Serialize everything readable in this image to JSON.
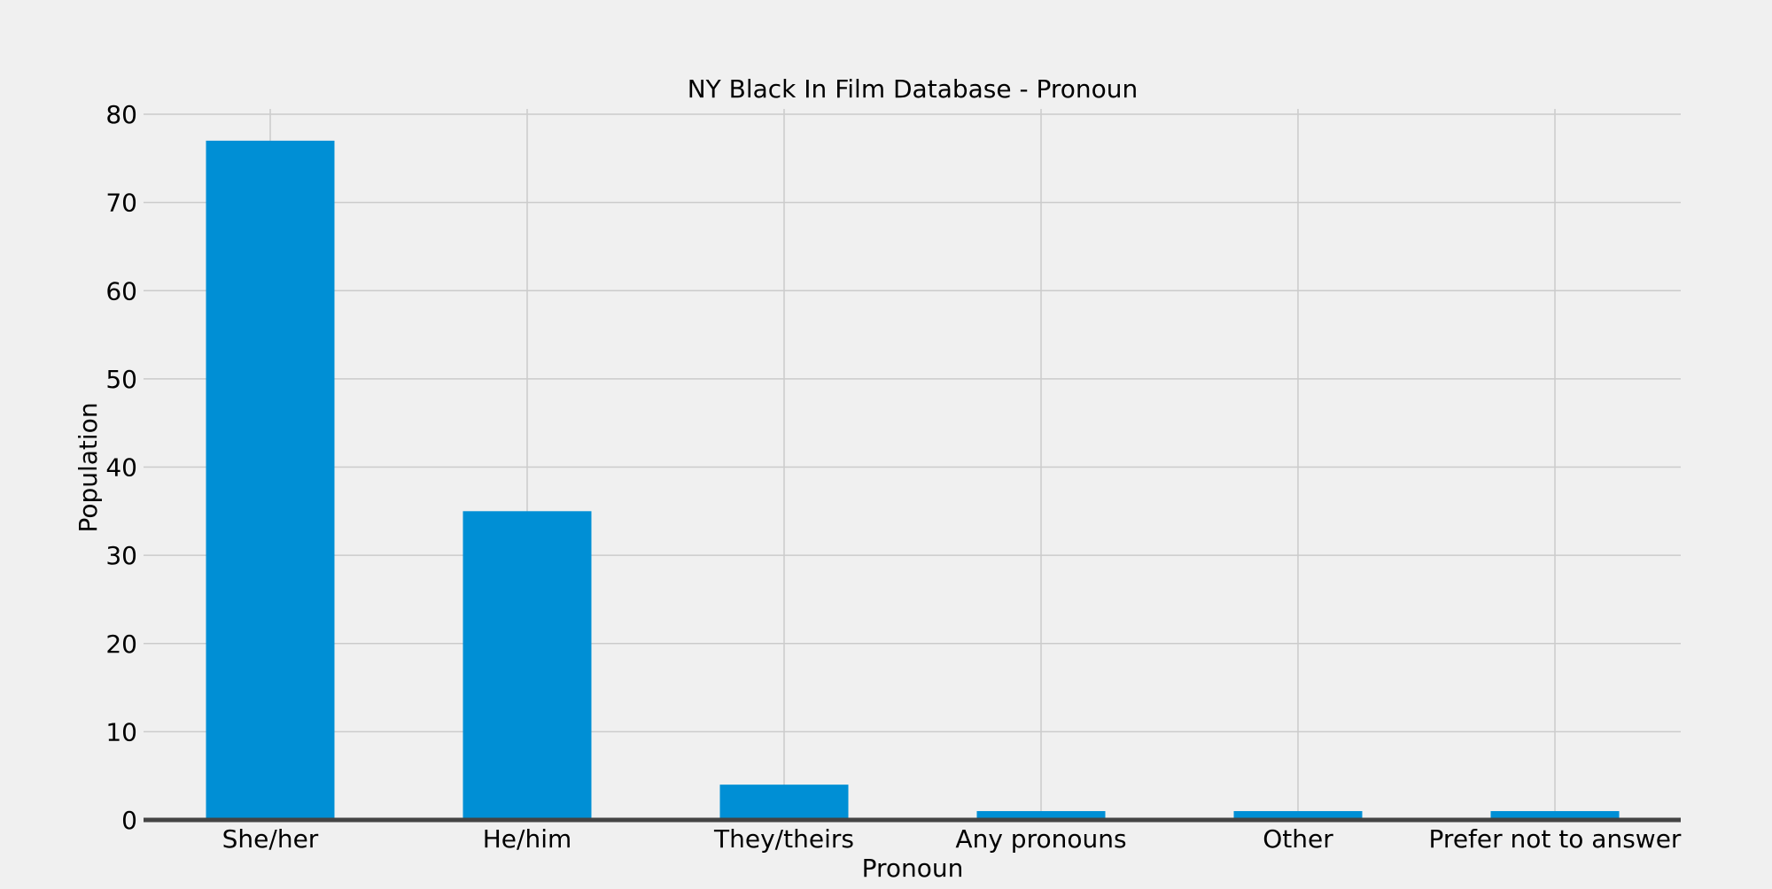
{
  "chart_data": {
    "type": "bar",
    "title": "NY Black In Film Database - Pronoun",
    "xlabel": "Pronoun",
    "ylabel": "Population",
    "categories": [
      "She/her",
      "He/him",
      "They/theirs",
      "Any pronouns",
      "Other",
      "Prefer not to answer"
    ],
    "values": [
      77,
      35,
      4,
      1,
      1,
      1
    ],
    "ylim": [
      0,
      80
    ],
    "yticks": [
      0,
      10,
      20,
      30,
      40,
      50,
      60,
      70,
      80
    ],
    "grid": true,
    "legend": "none",
    "colors": {
      "bar": "#008fd5",
      "background": "#f0f0f0",
      "grid": "#cbcbcb",
      "baseline": "#444444"
    }
  }
}
